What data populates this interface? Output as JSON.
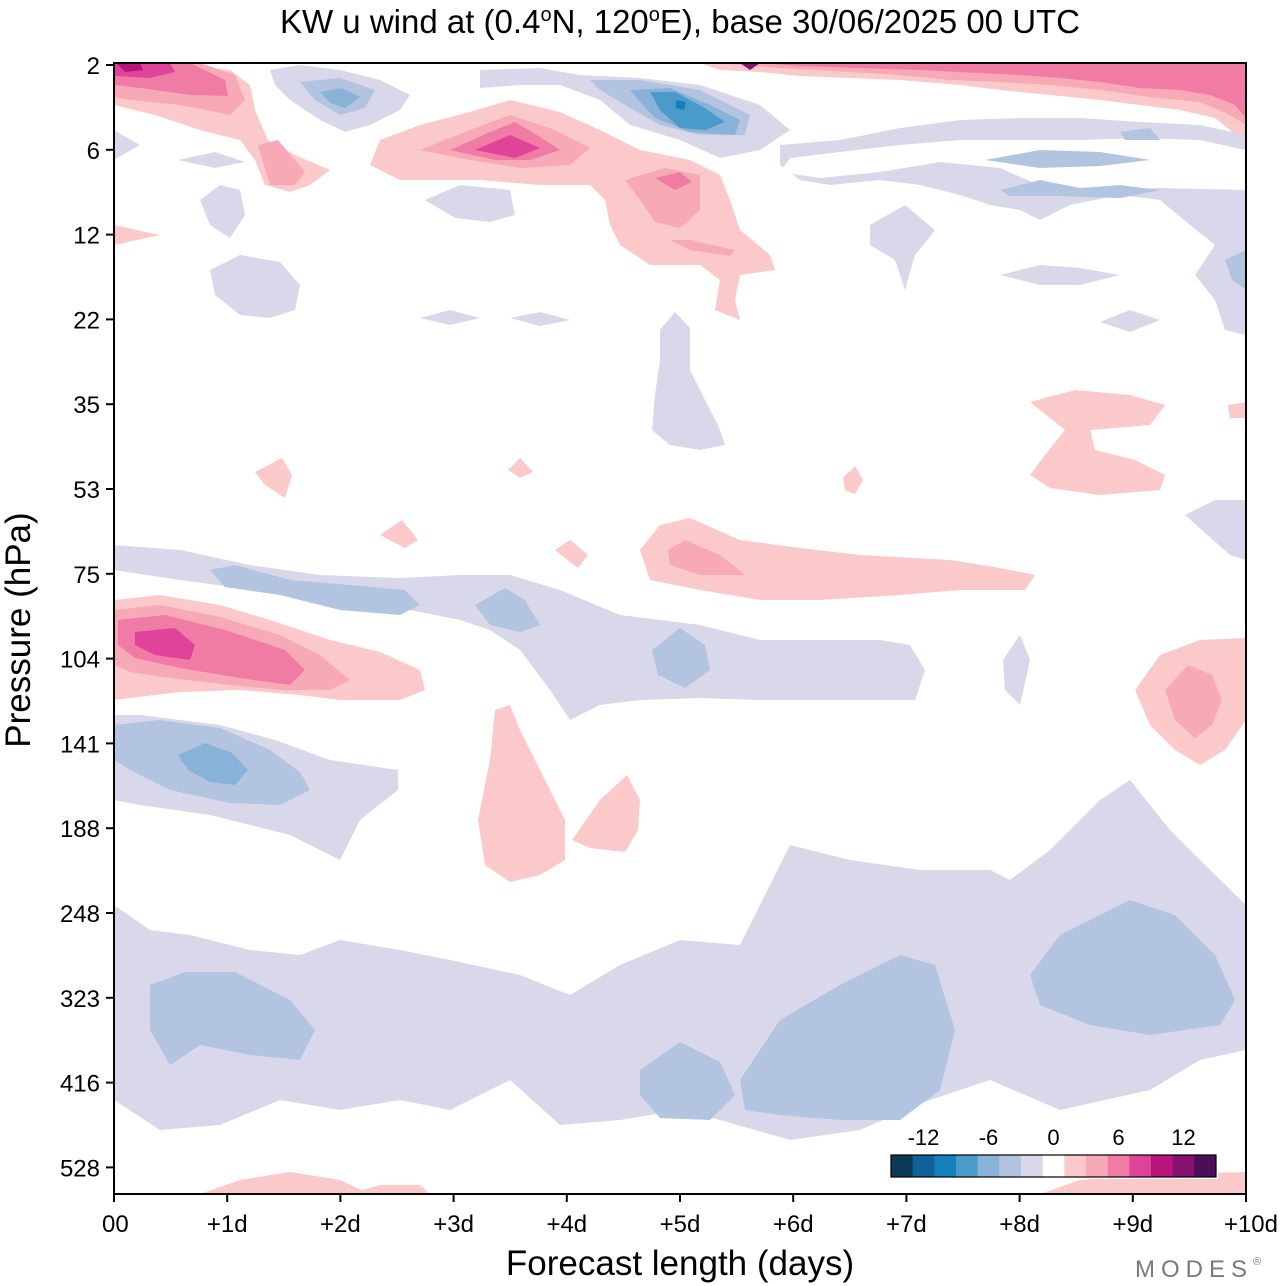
{
  "chart_data": {
    "type": "heatmap",
    "title_prefix": "KW u wind at (0.4",
    "title_deg1": "o",
    "title_mid": "N, 120",
    "title_deg2": "o",
    "title_suffix": "E),  base 30/06/2025  00 UTC",
    "xlabel": "Forecast length (days)",
    "ylabel": "Pressure (hPa)",
    "x_range_days": [
      0,
      10
    ],
    "x_ticks": [
      {
        "day": 0,
        "label": "00"
      },
      {
        "day": 1,
        "label": "+1d"
      },
      {
        "day": 2,
        "label": "+2d"
      },
      {
        "day": 3,
        "label": "+3d"
      },
      {
        "day": 4,
        "label": "+4d"
      },
      {
        "day": 5,
        "label": "+5d"
      },
      {
        "day": 6,
        "label": "+6d"
      },
      {
        "day": 7,
        "label": "+7d"
      },
      {
        "day": 8,
        "label": "+8d"
      },
      {
        "day": 9,
        "label": "+9d"
      },
      {
        "day": 10,
        "label": "+10d"
      }
    ],
    "y_levels_hpa": [
      "2",
      "6",
      "12",
      "22",
      "35",
      "53",
      "75",
      "104",
      "141",
      "188",
      "248",
      "323",
      "416",
      "528"
    ],
    "y_order": "pressure increasing downward",
    "colorbar": {
      "levels": [
        -14,
        -12,
        -10,
        -8,
        -6,
        -4,
        -2,
        0,
        2,
        4,
        6,
        8,
        10,
        12,
        14
      ],
      "colors": [
        "#0b3a55",
        "#10609a",
        "#1680bd",
        "#4a9bcb",
        "#89b2d8",
        "#b3c4e0",
        "#d8d8ea",
        "#ffffff",
        "#fbc9c9",
        "#f7a9b6",
        "#f07ca6",
        "#e0449a",
        "#b8147e",
        "#84126f",
        "#4a0d57"
      ],
      "tick_labels": [
        {
          "value": -12,
          "label": "-12"
        },
        {
          "value": -6,
          "label": "-6"
        },
        {
          "value": 0,
          "label": "0"
        },
        {
          "value": 6,
          "label": "6"
        },
        {
          "value": 12,
          "label": "12"
        }
      ]
    },
    "features": [
      {
        "name": "westerly-max-2hPa",
        "day": [
          0,
          1.2
        ],
        "level": "2",
        "value": 12
      },
      {
        "name": "westerly-band-2hPa",
        "day": [
          5.2,
          10
        ],
        "level": "2",
        "value": 8
      },
      {
        "name": "easterly-3hPa",
        "day": [
          2,
          2
        ],
        "level": "3",
        "value": -6
      },
      {
        "name": "easterly-4hPa",
        "day": [
          5,
          5.3
        ],
        "level": "4",
        "value": -10
      },
      {
        "name": "westerly-6hPa",
        "day": [
          3.5,
          3.5
        ],
        "level": "6",
        "value": 10
      },
      {
        "name": "westerly-8hPa",
        "day": [
          5,
          5.3
        ],
        "level": "8",
        "value": 6
      },
      {
        "name": "westerly-75hPa",
        "day": [
          5,
          5.5
        ],
        "level": "75",
        "value": 4
      },
      {
        "name": "easterly-75hPa",
        "day": [
          1,
          3.5
        ],
        "level": "80",
        "value": -4
      },
      {
        "name": "westerly-max-104hPa",
        "day": [
          0.2,
          1.8
        ],
        "level": "104",
        "value": 10
      },
      {
        "name": "easterly-104hPa",
        "day": [
          5,
          5
        ],
        "level": "104",
        "value": -4
      },
      {
        "name": "westerly-115hPa",
        "day": [
          9.5,
          9.5
        ],
        "level": "115",
        "value": 4
      },
      {
        "name": "easterly-141hPa",
        "day": [
          0.5,
          1.8
        ],
        "level": "141",
        "value": -6
      },
      {
        "name": "westerly-180hPa",
        "day": [
          3.5,
          4.5
        ],
        "level": "180",
        "value": 2
      },
      {
        "name": "easterly-band-300hPa",
        "day": [
          0,
          10
        ],
        "level": "300",
        "value": -2
      },
      {
        "name": "easterly-350hPa",
        "day": [
          6,
          7.2
        ],
        "level": "350",
        "value": -4
      }
    ]
  },
  "watermark": "MODES",
  "watermark_mark": "®"
}
